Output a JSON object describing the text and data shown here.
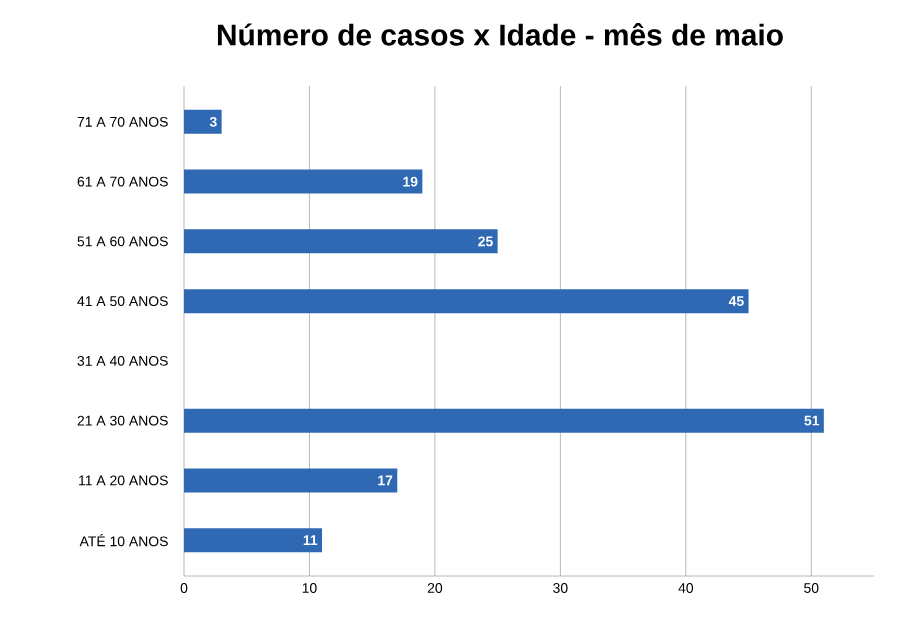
{
  "chart_data": {
    "type": "bar",
    "orientation": "horizontal",
    "title": "Número de casos x Idade - mês de maio",
    "categories": [
      "71 A 70 ANOS",
      "61 A 70 ANOS",
      "51 A 60 ANOS",
      "41 A 50 ANOS",
      "31 A 40 ANOS",
      "21 A 30 ANOS",
      "11 A 20 ANOS",
      "ATÉ 10 ANOS"
    ],
    "values": [
      3,
      19,
      25,
      45,
      null,
      51,
      17,
      11
    ],
    "color": "#2f69b3",
    "xlim": [
      0,
      55
    ],
    "xticks": [
      0,
      10,
      20,
      30,
      40,
      50
    ],
    "grid": "x",
    "data_labels": true
  }
}
